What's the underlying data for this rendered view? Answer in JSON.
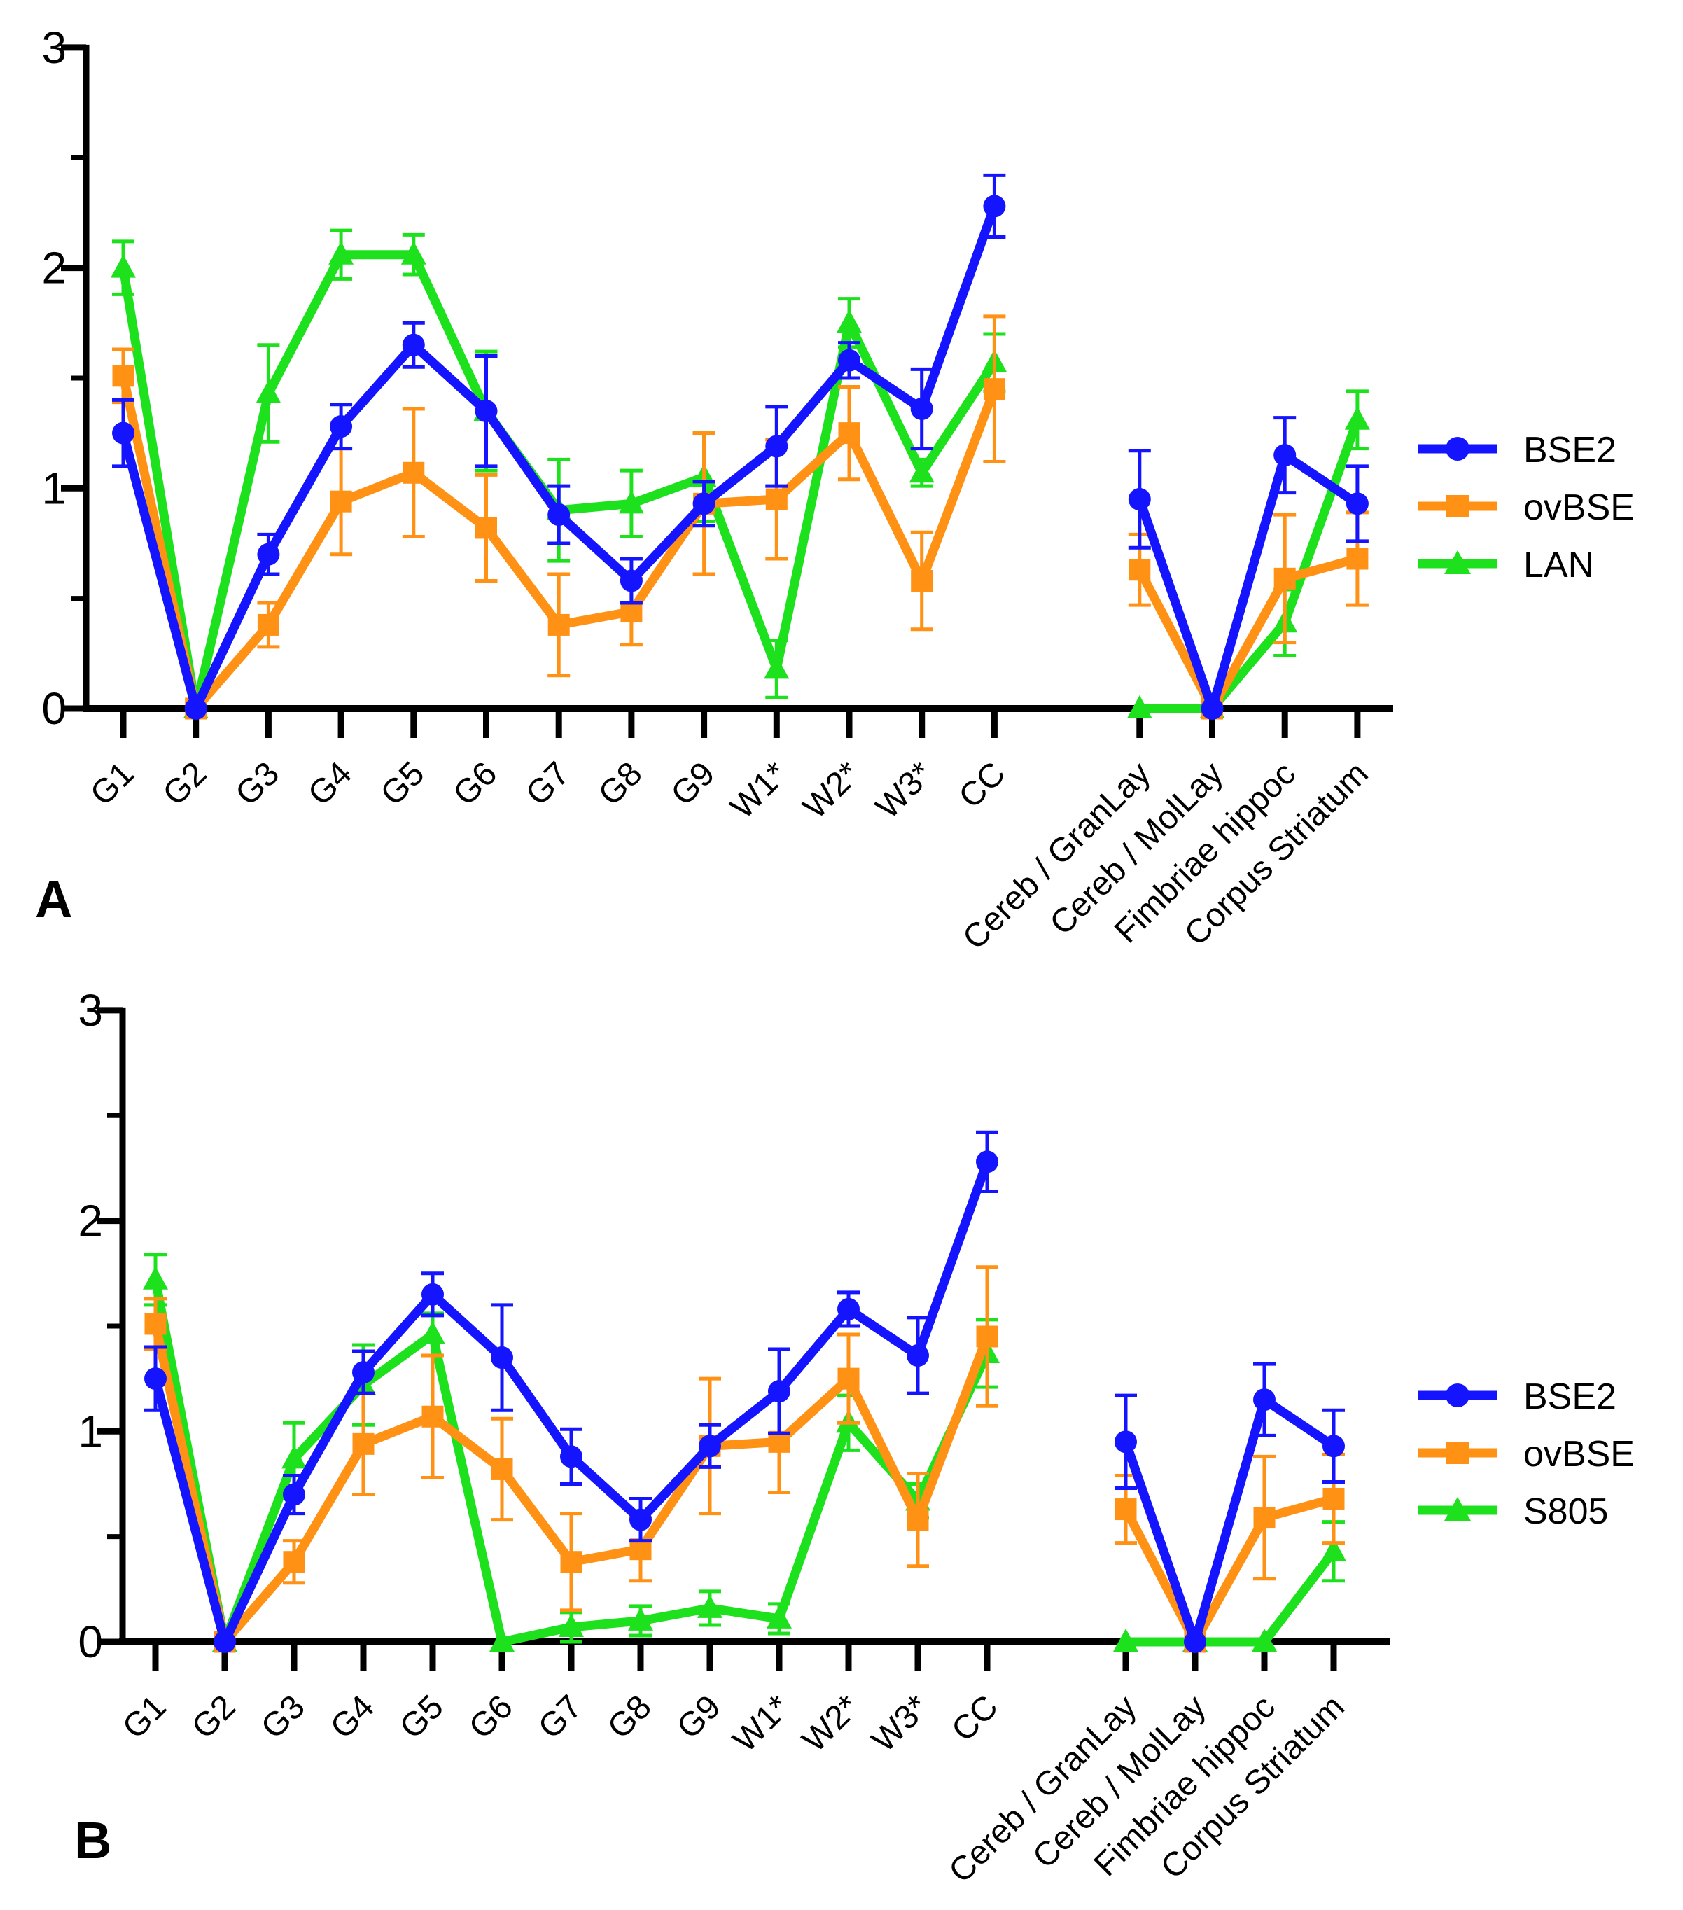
{
  "colors": {
    "axis": "#000000",
    "background": "#ffffff",
    "bse2": "#1414ff",
    "ovbse": "#ff9114",
    "lan": "#1ee11e",
    "s805": "#1ee11e"
  },
  "chart_data": [
    {
      "type": "line",
      "panel_label": "A",
      "title": "",
      "xlabel": "",
      "ylabel": "",
      "ylim": [
        0,
        3
      ],
      "y_ticks": [
        0,
        1,
        2,
        3
      ],
      "y_minor_ticks": [
        0.5,
        1.5,
        2.5
      ],
      "grid": false,
      "legend_position": "right",
      "x_gap_after": "CC",
      "categories": [
        "G1",
        "G2",
        "G3",
        "G4",
        "G5",
        "G6",
        "G7",
        "G8",
        "G9",
        "W1*",
        "W2*",
        "W3*",
        "CC",
        "Cereb / GranLay",
        "Cereb / MolLay",
        "Fimbriae hippoc",
        "Corpus Striatum"
      ],
      "series": [
        {
          "name": "BSE2",
          "color": "#1414ff",
          "marker": "circle",
          "values": [
            1.25,
            0,
            0.7,
            1.28,
            1.65,
            1.35,
            0.88,
            0.58,
            0.93,
            1.19,
            1.58,
            1.36,
            2.28,
            0.95,
            0,
            1.15,
            0.93
          ],
          "errors": [
            0.15,
            0,
            0.09,
            0.1,
            0.1,
            0.25,
            0.13,
            0.1,
            0.1,
            0.18,
            0.08,
            0.18,
            0.14,
            0.22,
            0,
            0.17,
            0.17
          ]
        },
        {
          "name": "ovBSE",
          "color": "#ff9114",
          "marker": "square",
          "values": [
            1.51,
            0,
            0.38,
            0.94,
            1.07,
            0.82,
            0.38,
            0.44,
            0.93,
            0.95,
            1.25,
            0.58,
            1.45,
            0.63,
            0,
            0.59,
            0.68
          ],
          "errors": [
            0.12,
            0,
            0.1,
            0.24,
            0.29,
            0.24,
            0.23,
            0.15,
            0.32,
            0.27,
            0.21,
            0.22,
            0.33,
            0.16,
            0,
            0.29,
            0.21
          ]
        },
        {
          "name": "LAN",
          "color": "#1ee11e",
          "marker": "triangle",
          "values": [
            2.0,
            0,
            1.43,
            2.06,
            2.06,
            1.35,
            0.9,
            0.93,
            1.05,
            0.18,
            1.75,
            1.07,
            1.57,
            0,
            0,
            0.39,
            1.31
          ],
          "errors": [
            0.12,
            0,
            0.22,
            0.11,
            0.09,
            0.27,
            0.23,
            0.15,
            0.2,
            0.13,
            0.11,
            0.06,
            0.13,
            0,
            0,
            0.15,
            0.13
          ]
        }
      ]
    },
    {
      "type": "line",
      "panel_label": "B",
      "title": "",
      "xlabel": "",
      "ylabel": "",
      "ylim": [
        0,
        3
      ],
      "y_ticks": [
        0,
        1,
        2,
        3
      ],
      "y_minor_ticks": [
        0.5,
        1.5,
        2.5
      ],
      "grid": false,
      "legend_position": "right",
      "x_gap_after": "CC",
      "categories": [
        "G1",
        "G2",
        "G3",
        "G4",
        "G5",
        "G6",
        "G7",
        "G8",
        "G9",
        "W1*",
        "W2*",
        "W3*",
        "CC",
        "Cereb / GranLay",
        "Cereb / MolLay",
        "Fimbriae hippoc",
        "Corpus Striatum"
      ],
      "series": [
        {
          "name": "BSE2",
          "color": "#1414ff",
          "marker": "circle",
          "values": [
            1.25,
            0,
            0.7,
            1.28,
            1.65,
            1.35,
            0.88,
            0.58,
            0.93,
            1.19,
            1.58,
            1.36,
            2.28,
            0.95,
            0,
            1.15,
            0.93
          ],
          "errors": [
            0.15,
            0,
            0.09,
            0.1,
            0.1,
            0.25,
            0.13,
            0.1,
            0.1,
            0.2,
            0.08,
            0.18,
            0.14,
            0.22,
            0,
            0.17,
            0.17
          ]
        },
        {
          "name": "ovBSE",
          "color": "#ff9114",
          "marker": "square",
          "values": [
            1.51,
            0,
            0.38,
            0.94,
            1.07,
            0.82,
            0.38,
            0.44,
            0.93,
            0.95,
            1.25,
            0.58,
            1.45,
            0.63,
            0,
            0.59,
            0.68
          ],
          "errors": [
            0.12,
            0,
            0.1,
            0.24,
            0.29,
            0.24,
            0.23,
            0.15,
            0.32,
            0.24,
            0.21,
            0.22,
            0.33,
            0.16,
            0,
            0.29,
            0.21
          ]
        },
        {
          "name": "S805",
          "color": "#1ee11e",
          "marker": "triangle",
          "values": [
            1.72,
            0,
            0.87,
            1.22,
            1.46,
            0,
            0.07,
            0.1,
            0.16,
            0.11,
            1.04,
            0.67,
            1.37,
            0,
            0,
            0,
            0.43
          ],
          "errors": [
            0.12,
            0,
            0.17,
            0.19,
            0.1,
            0,
            0.07,
            0.07,
            0.08,
            0.07,
            0.13,
            0.08,
            0.16,
            0,
            0,
            0,
            0.14
          ]
        }
      ]
    }
  ]
}
